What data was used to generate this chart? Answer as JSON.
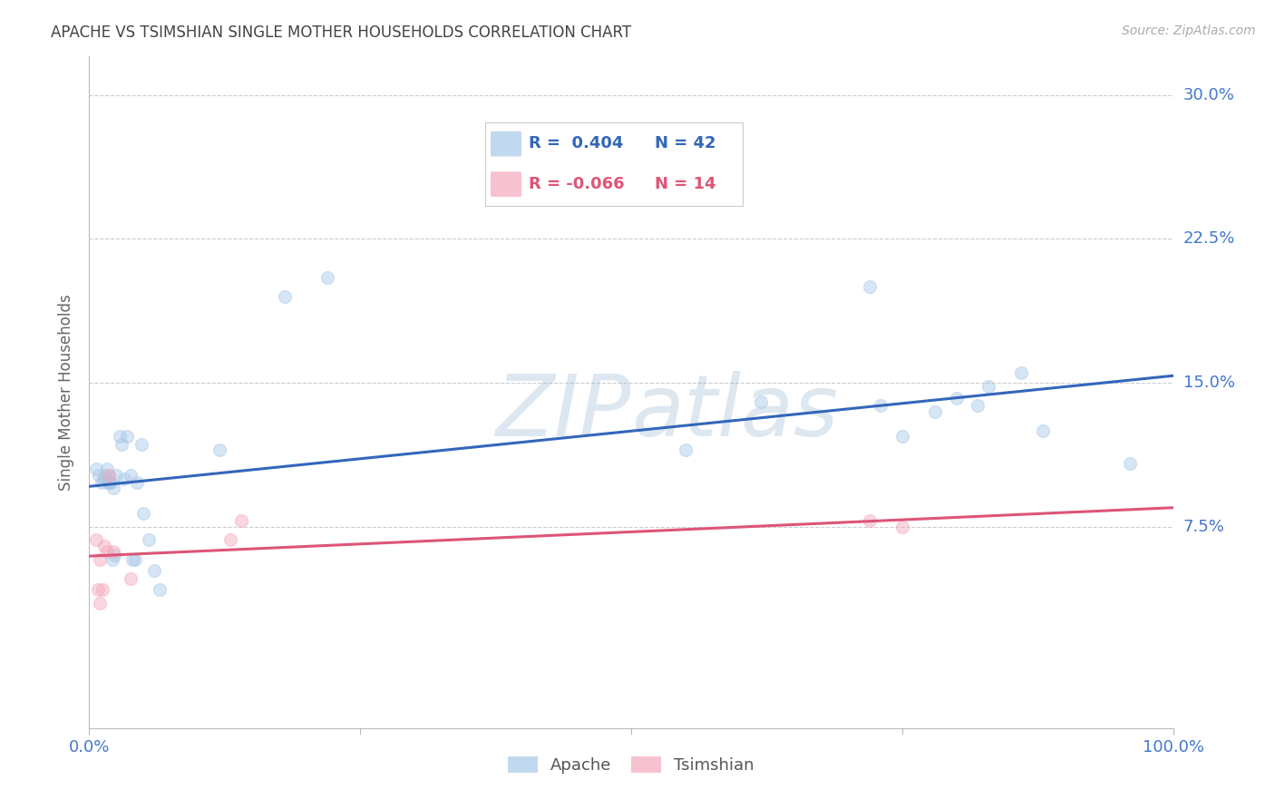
{
  "title": "APACHE VS TSIMSHIAN SINGLE MOTHER HOUSEHOLDS CORRELATION CHART",
  "source": "Source: ZipAtlas.com",
  "ylabel": "Single Mother Households",
  "watermark_zip": "ZIP",
  "watermark_atlas": "atlas",
  "xlim": [
    0.0,
    1.0
  ],
  "ylim": [
    -0.03,
    0.32
  ],
  "xtick_positions": [
    0.0,
    0.25,
    0.5,
    0.75,
    1.0
  ],
  "xtick_labels": [
    "0.0%",
    "",
    "",
    "",
    "100.0%"
  ],
  "ytick_positions": [
    0.075,
    0.15,
    0.225,
    0.3
  ],
  "ytick_labels": [
    "7.5%",
    "15.0%",
    "22.5%",
    "30.0%"
  ],
  "apache_color": "#a8c8e8",
  "tsimshian_color": "#f4a8bb",
  "apache_line_color": "#3366bb",
  "tsimshian_line_color": "#dd5577",
  "legend_R_apache": "R =  0.404",
  "legend_N_apache": "N = 42",
  "legend_R_tsimshian": "R = -0.066",
  "legend_N_tsimshian": "N = 14",
  "apache_x": [
    0.006,
    0.009,
    0.011,
    0.013,
    0.015,
    0.016,
    0.017,
    0.018,
    0.019,
    0.02,
    0.021,
    0.022,
    0.023,
    0.025,
    0.028,
    0.03,
    0.032,
    0.035,
    0.038,
    0.04,
    0.042,
    0.044,
    0.048,
    0.05,
    0.055,
    0.06,
    0.065,
    0.12,
    0.18,
    0.22,
    0.55,
    0.62,
    0.72,
    0.73,
    0.75,
    0.78,
    0.8,
    0.82,
    0.83,
    0.86,
    0.88,
    0.96
  ],
  "apache_y": [
    0.105,
    0.102,
    0.098,
    0.1,
    0.102,
    0.105,
    0.098,
    0.102,
    0.098,
    0.098,
    0.058,
    0.095,
    0.06,
    0.102,
    0.122,
    0.118,
    0.1,
    0.122,
    0.102,
    0.058,
    0.058,
    0.098,
    0.118,
    0.082,
    0.068,
    0.052,
    0.042,
    0.115,
    0.195,
    0.205,
    0.115,
    0.14,
    0.2,
    0.138,
    0.122,
    0.135,
    0.142,
    0.138,
    0.148,
    0.155,
    0.125,
    0.108
  ],
  "tsimshian_x": [
    0.006,
    0.008,
    0.01,
    0.01,
    0.012,
    0.014,
    0.016,
    0.018,
    0.022,
    0.038,
    0.13,
    0.14,
    0.72,
    0.75
  ],
  "tsimshian_y": [
    0.068,
    0.042,
    0.035,
    0.058,
    0.042,
    0.065,
    0.062,
    0.102,
    0.062,
    0.048,
    0.068,
    0.078,
    0.078,
    0.075
  ],
  "background_color": "#ffffff",
  "grid_color": "#cccccc",
  "title_color": "#444444",
  "ytick_color": "#4477cc",
  "xtick_color": "#4477cc",
  "marker_size": 100,
  "marker_alpha": 0.45,
  "marker_linewidth": 1.0
}
